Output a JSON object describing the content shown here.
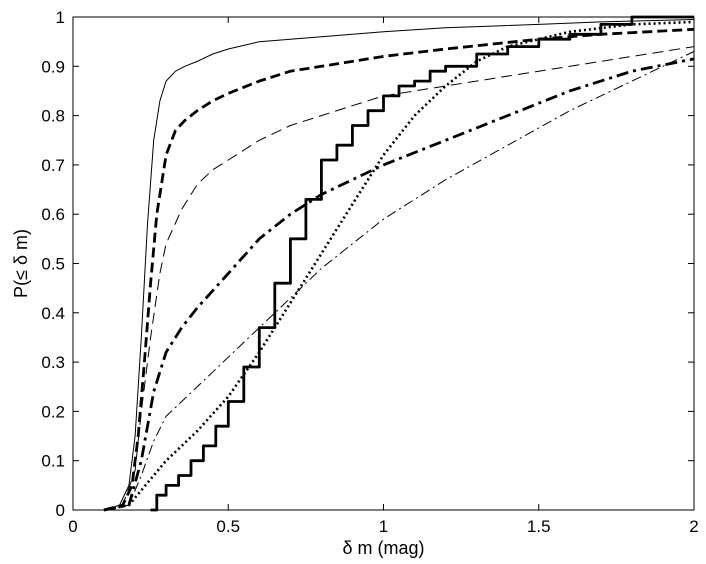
{
  "chart_data": {
    "type": "line",
    "title": "",
    "xlabel": "δ m (mag)",
    "ylabel": "P(≤ δ m)",
    "xlim": [
      0,
      2
    ],
    "ylim": [
      0,
      1
    ],
    "xticks": [
      0,
      0.5,
      1,
      1.5,
      2
    ],
    "xtick_labels": [
      "0",
      "0.5",
      "1",
      "1.5",
      "2"
    ],
    "yticks": [
      0,
      0.1,
      0.2,
      0.3,
      0.4,
      0.5,
      0.6,
      0.7,
      0.8,
      0.9,
      1
    ],
    "ytick_labels": [
      "0",
      "0.1",
      "0.2",
      "0.3",
      "0.4",
      "0.5",
      "0.6",
      "0.7",
      "0.8",
      "0.9",
      "1"
    ],
    "grid": false,
    "legend": "none",
    "series": [
      {
        "style": "thin-solid",
        "x": [
          0.1,
          0.15,
          0.18,
          0.2,
          0.22,
          0.24,
          0.26,
          0.28,
          0.3,
          0.33,
          0.36,
          0.4,
          0.45,
          0.5,
          0.6,
          0.7,
          0.8,
          1.0,
          1.2,
          1.5,
          1.7,
          2.0
        ],
        "y": [
          0.0,
          0.01,
          0.05,
          0.15,
          0.35,
          0.58,
          0.75,
          0.83,
          0.87,
          0.89,
          0.9,
          0.91,
          0.925,
          0.935,
          0.95,
          0.955,
          0.96,
          0.97,
          0.978,
          0.985,
          0.99,
          0.995
        ]
      },
      {
        "style": "thick-dashed",
        "x": [
          0.1,
          0.16,
          0.19,
          0.21,
          0.23,
          0.25,
          0.27,
          0.3,
          0.33,
          0.36,
          0.4,
          0.45,
          0.5,
          0.6,
          0.7,
          0.8,
          0.9,
          1.0,
          1.2,
          1.5,
          1.7,
          2.0
        ],
        "y": [
          0.0,
          0.01,
          0.05,
          0.15,
          0.3,
          0.46,
          0.6,
          0.72,
          0.77,
          0.79,
          0.81,
          0.83,
          0.845,
          0.87,
          0.89,
          0.9,
          0.91,
          0.92,
          0.935,
          0.955,
          0.965,
          0.975
        ]
      },
      {
        "style": "thin-dashed",
        "x": [
          0.1,
          0.16,
          0.2,
          0.22,
          0.25,
          0.28,
          0.3,
          0.35,
          0.4,
          0.45,
          0.5,
          0.6,
          0.7,
          0.8,
          0.9,
          1.0,
          1.2,
          1.5,
          2.0
        ],
        "y": [
          0.0,
          0.01,
          0.08,
          0.2,
          0.35,
          0.48,
          0.54,
          0.61,
          0.66,
          0.69,
          0.71,
          0.75,
          0.78,
          0.8,
          0.82,
          0.84,
          0.86,
          0.89,
          0.94
        ]
      },
      {
        "style": "thick-dashdot",
        "x": [
          0.1,
          0.18,
          0.22,
          0.26,
          0.3,
          0.35,
          0.4,
          0.5,
          0.6,
          0.7,
          0.8,
          0.9,
          1.0,
          1.2,
          1.4,
          1.6,
          1.8,
          2.0
        ],
        "y": [
          0.0,
          0.01,
          0.1,
          0.24,
          0.32,
          0.37,
          0.41,
          0.48,
          0.55,
          0.6,
          0.64,
          0.67,
          0.7,
          0.75,
          0.8,
          0.85,
          0.89,
          0.915
        ]
      },
      {
        "style": "thin-dashdot",
        "x": [
          0.1,
          0.18,
          0.22,
          0.26,
          0.3,
          0.35,
          0.4,
          0.5,
          0.6,
          0.7,
          0.8,
          0.9,
          1.0,
          1.2,
          1.4,
          1.6,
          1.8,
          2.0
        ],
        "y": [
          0.0,
          0.01,
          0.07,
          0.14,
          0.19,
          0.22,
          0.25,
          0.31,
          0.37,
          0.43,
          0.49,
          0.54,
          0.59,
          0.67,
          0.74,
          0.81,
          0.87,
          0.93
        ]
      },
      {
        "style": "thick-dotted",
        "x": [
          0.1,
          0.18,
          0.22,
          0.26,
          0.3,
          0.35,
          0.4,
          0.5,
          0.6,
          0.7,
          0.8,
          0.9,
          1.0,
          1.1,
          1.2,
          1.3,
          1.4,
          1.6,
          1.8,
          2.0
        ],
        "y": [
          0.0,
          0.01,
          0.04,
          0.07,
          0.1,
          0.13,
          0.16,
          0.23,
          0.32,
          0.42,
          0.52,
          0.62,
          0.72,
          0.8,
          0.86,
          0.91,
          0.94,
          0.97,
          0.985,
          0.99
        ]
      },
      {
        "style": "thick-solid-step",
        "x": [
          0.25,
          0.27,
          0.3,
          0.34,
          0.38,
          0.42,
          0.46,
          0.5,
          0.55,
          0.6,
          0.65,
          0.7,
          0.75,
          0.8,
          0.85,
          0.9,
          0.95,
          1.0,
          1.05,
          1.1,
          1.15,
          1.2,
          1.3,
          1.4,
          1.5,
          1.6,
          1.7,
          1.8,
          2.0
        ],
        "y": [
          0.0,
          0.03,
          0.05,
          0.07,
          0.1,
          0.13,
          0.17,
          0.22,
          0.29,
          0.37,
          0.46,
          0.55,
          0.63,
          0.71,
          0.74,
          0.78,
          0.81,
          0.84,
          0.86,
          0.87,
          0.89,
          0.9,
          0.925,
          0.94,
          0.955,
          0.965,
          0.985,
          1.0,
          1.0
        ]
      }
    ]
  }
}
